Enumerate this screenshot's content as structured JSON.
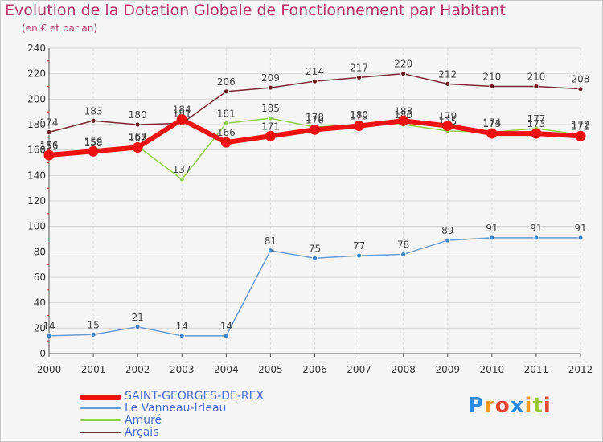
{
  "header": {
    "title": "Evolution de la Dotation Globale de Fonctionnement par Habitant",
    "subtitle": "(en € et par an)"
  },
  "logo": {
    "letters": [
      "P",
      "r",
      "o",
      "x",
      "i",
      "t",
      "i"
    ],
    "colors": [
      "#2d8be0",
      "#f39a1b",
      "#e8422f",
      "#2d8be0",
      "#f39a1b",
      "#9ac82a",
      "#e8422f"
    ]
  },
  "chart_data": {
    "type": "line",
    "x": [
      "2000",
      "2001",
      "2002",
      "2003",
      "2004",
      "2005",
      "2006",
      "2007",
      "2008",
      "2009",
      "2010",
      "2011",
      "2012"
    ],
    "ylim": [
      0,
      240
    ],
    "yticks": [
      0,
      20,
      40,
      60,
      80,
      100,
      120,
      140,
      160,
      180,
      200,
      220,
      240
    ],
    "grid": true,
    "legend_position": "bottom-left",
    "series": [
      {
        "name": "Arçais",
        "color": "#7a2a34",
        "marker": "#6b1a22",
        "values": [
          174,
          183,
          180,
          181,
          206,
          209,
          214,
          217,
          220,
          212,
          210,
          210,
          208
        ],
        "labels": [
          "174",
          "183",
          "180",
          "181",
          "206",
          "209",
          "214",
          "217",
          "220",
          "212",
          "210",
          "210",
          "208"
        ]
      },
      {
        "name": "Amuré",
        "color": "#8fd04a",
        "marker": "#8fd04a",
        "values": [
          155,
          158,
          163,
          137,
          181,
          185,
          178,
          180,
          180,
          175,
          174,
          177,
          172
        ],
        "labels": [
          "155",
          "158",
          "163",
          "137",
          "181",
          "185",
          "178",
          "180",
          "180",
          "175",
          "174",
          "177",
          "172"
        ]
      },
      {
        "name": "Le Vanneau-Irleau",
        "color": "#6a9bd0",
        "marker": "#3c82c8",
        "values": [
          14,
          15,
          21,
          14,
          14,
          81,
          75,
          77,
          78,
          89,
          91,
          91,
          91
        ],
        "labels": [
          "14",
          "15",
          "21",
          "14",
          "14",
          "81",
          "75",
          "77",
          "78",
          "89",
          "91",
          "91",
          "91"
        ]
      },
      {
        "name": "SAINT-GEORGES-DE-REX",
        "color": "#ee1111",
        "marker": "#ee1111",
        "values": [
          156,
          159,
          162,
          184,
          166,
          171,
          176,
          179,
          183,
          179,
          173,
          173,
          171
        ],
        "labels": [
          "156",
          "159",
          "162",
          "184",
          "166",
          "171",
          "176",
          "179",
          "183",
          "179",
          "173",
          "173",
          "171"
        ]
      }
    ]
  }
}
